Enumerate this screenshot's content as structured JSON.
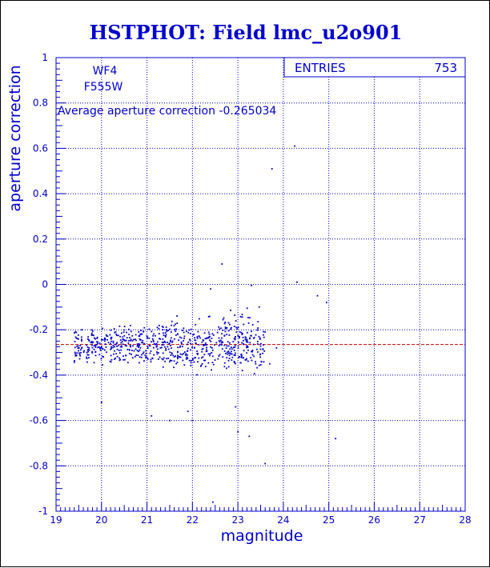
{
  "colors": {
    "title": "#0000cc",
    "axes": "#0000cc",
    "grid": "#0000cc",
    "points": "#0000cc",
    "mean_line": "#cc0000",
    "background": "#ffffff"
  },
  "chart_data": {
    "type": "scatter",
    "title": "HSTPHOT: Field lmc_u2o901",
    "xlabel": "magnitude",
    "ylabel": "aperture correction",
    "xlim": [
      19,
      28
    ],
    "ylim": [
      -1,
      1
    ],
    "x_ticks": [
      19,
      20,
      21,
      22,
      23,
      24,
      25,
      26,
      27,
      28
    ],
    "y_ticks": [
      -1,
      -0.8,
      -0.6,
      -0.4,
      -0.2,
      0,
      0.2,
      0.4,
      0.6,
      0.8,
      1
    ],
    "grid": true,
    "annotations": {
      "chip": "WF4",
      "filter": "F555W",
      "average_text": "Average aperture correction -0.265034"
    },
    "stats_box": {
      "label": "ENTRIES",
      "value": "753",
      "placement": "top-right"
    },
    "mean_line": {
      "y": -0.265034
    },
    "outliers": [
      {
        "x": 22.45,
        "y": -0.96
      },
      {
        "x": 23.25,
        "y": -0.67
      },
      {
        "x": 25.15,
        "y": -0.68
      },
      {
        "x": 23.6,
        "y": -0.79
      },
      {
        "x": 22.65,
        "y": 0.09
      },
      {
        "x": 23.75,
        "y": 0.51
      },
      {
        "x": 24.25,
        "y": 0.61
      },
      {
        "x": 24.3,
        "y": 0.01
      },
      {
        "x": 24.75,
        "y": -0.05
      },
      {
        "x": 24.95,
        "y": -0.08
      },
      {
        "x": 23.3,
        "y": -0.005
      },
      {
        "x": 22.4,
        "y": -0.02
      },
      {
        "x": 23.0,
        "y": -0.65
      },
      {
        "x": 23.1,
        "y": -0.38
      },
      {
        "x": 23.7,
        "y": -0.35
      },
      {
        "x": 23.85,
        "y": -0.28
      },
      {
        "x": 20.0,
        "y": -0.52
      },
      {
        "x": 21.1,
        "y": -0.58
      },
      {
        "x": 21.5,
        "y": -0.6
      },
      {
        "x": 22.0,
        "y": -0.6
      },
      {
        "x": 21.9,
        "y": -0.56
      },
      {
        "x": 22.95,
        "y": -0.54
      }
    ],
    "bulk": {
      "count": 731,
      "x_range": [
        19.3,
        23.6
      ],
      "y_center": -0.27,
      "y_spread": 0.12,
      "representative_points": [
        {
          "x": 19.5,
          "y": -0.27
        },
        {
          "x": 19.8,
          "y": -0.22
        },
        {
          "x": 20.2,
          "y": -0.3
        },
        {
          "x": 20.6,
          "y": -0.25
        },
        {
          "x": 21.0,
          "y": -0.28
        },
        {
          "x": 21.4,
          "y": -0.32
        },
        {
          "x": 21.8,
          "y": -0.26
        },
        {
          "x": 22.2,
          "y": -0.24
        },
        {
          "x": 22.6,
          "y": -0.22
        },
        {
          "x": 23.0,
          "y": -0.2
        }
      ]
    }
  }
}
